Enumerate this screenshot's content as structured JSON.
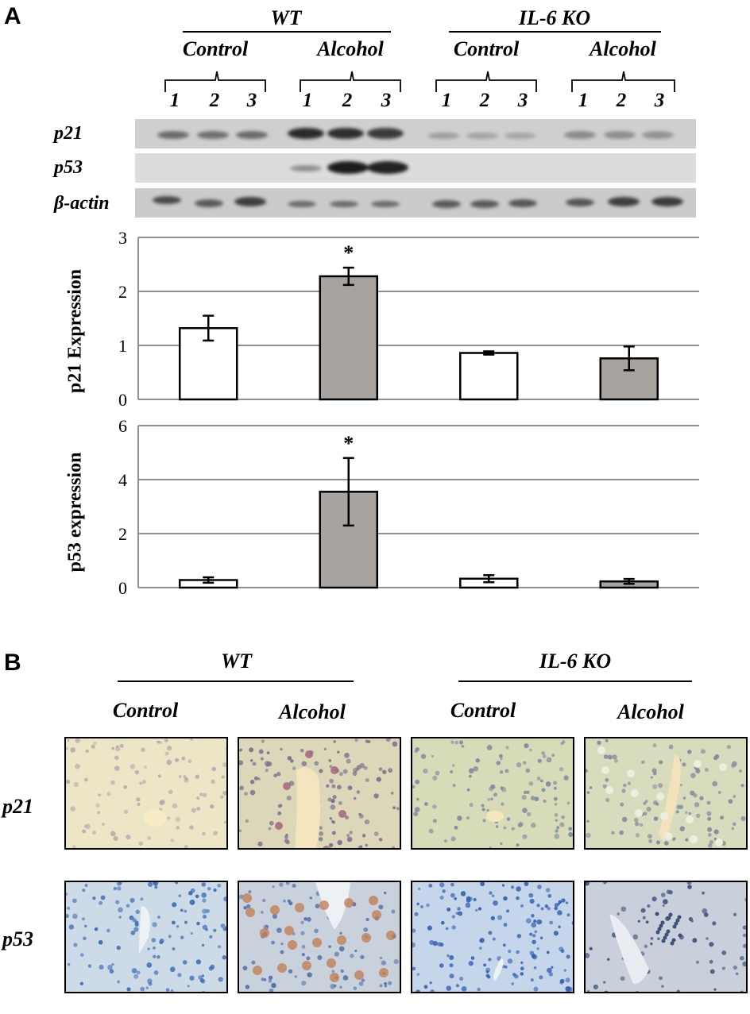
{
  "panels": {
    "a": "A",
    "b": "B"
  },
  "blot": {
    "groups": [
      "WT",
      "IL-6 KO"
    ],
    "conditions": [
      "Control",
      "Alcohol",
      "Control",
      "Alcohol"
    ],
    "lanes": [
      "1",
      "2",
      "3",
      "1",
      "2",
      "3",
      "1",
      "2",
      "3",
      "1",
      "2",
      "3"
    ],
    "rows": [
      "p21",
      "p53",
      "β-actin"
    ]
  },
  "histology": {
    "groups": [
      "WT",
      "IL-6 KO"
    ],
    "conditions": [
      "Control",
      "Alcohol",
      "Control",
      "Alcohol"
    ],
    "rows": [
      "p21",
      "p53"
    ]
  },
  "colors": {
    "control_fill": "#ffffff",
    "alcohol_fill": "#a9a39f",
    "grid": "#8f8f8f"
  },
  "chart_data": [
    {
      "type": "bar",
      "ylabel": "p21 Expression",
      "ylim": [
        0,
        3
      ],
      "yticks": [
        "0",
        "1",
        "2",
        "3"
      ],
      "categories": [
        "WT Control",
        "WT Alcohol",
        "IL-6 KO Control",
        "IL-6 KO Alcohol"
      ],
      "values": [
        1.32,
        2.28,
        0.86,
        0.76
      ],
      "errors": [
        0.23,
        0.16,
        0.03,
        0.22
      ],
      "significance": [
        "",
        "*",
        "",
        ""
      ],
      "grid": true
    },
    {
      "type": "bar",
      "ylabel": "p53 expression",
      "ylim": [
        0,
        6
      ],
      "yticks": [
        "0",
        "2",
        "4",
        "6"
      ],
      "categories": [
        "WT Control",
        "WT Alcohol",
        "IL-6 KO Control",
        "IL-6 KO Alcohol"
      ],
      "values": [
        0.28,
        3.55,
        0.33,
        0.23
      ],
      "errors": [
        0.1,
        1.25,
        0.13,
        0.09
      ],
      "significance": [
        "",
        "*",
        "",
        ""
      ],
      "grid": true
    }
  ]
}
